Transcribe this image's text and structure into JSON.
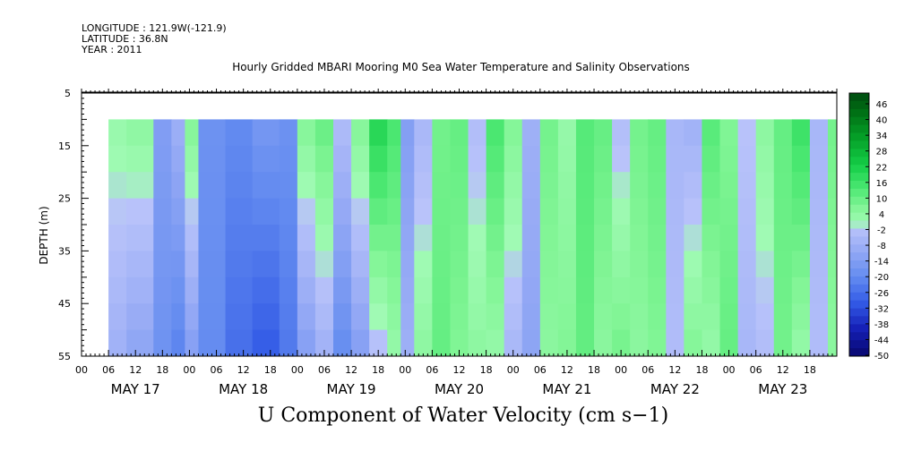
{
  "header": {
    "longitude": "LONGITUDE : 121.9W(-121.9)",
    "latitude": "LATITUDE : 36.8N",
    "year": "YEAR : 2011"
  },
  "chart_data": {
    "type": "heatmap",
    "title": "Hourly Gridded MBARI Mooring M0 Sea Water Temperature and Salinity Observations",
    "bottom_title": "U Component of Water Velocity (cm s−1)",
    "ylabel": "DEPTH (m)",
    "y_ticks": [
      "5",
      "15",
      "25",
      "35",
      "45",
      "55"
    ],
    "ylim": [
      5,
      55
    ],
    "depth_data_range": [
      10,
      55
    ],
    "x_hour_ticks": [
      "00",
      "06",
      "12",
      "18",
      "00",
      "06",
      "12",
      "18",
      "00",
      "06",
      "12",
      "18",
      "00",
      "06",
      "12",
      "18",
      "00",
      "06",
      "12",
      "18",
      "00",
      "06",
      "12",
      "18",
      "00",
      "06",
      "12",
      "18"
    ],
    "x_day_labels": [
      "MAY 17",
      "MAY 18",
      "MAY 19",
      "MAY 20",
      "MAY 21",
      "MAY 22",
      "MAY 23"
    ],
    "data_start_hour": 6,
    "total_hours": 168,
    "colorbar": {
      "labels": [
        "46",
        "40",
        "34",
        "28",
        "22",
        "16",
        "10",
        "4",
        "-2",
        "-8",
        "-14",
        "-20",
        "-26",
        "-32",
        "-38",
        "-44",
        "-50"
      ],
      "min": -50,
      "max": 49
    },
    "column_profiles": [
      {
        "hour": 6,
        "surface": 2,
        "deep": -8
      },
      {
        "hour": 10,
        "surface": 4,
        "deep": -12
      },
      {
        "hour": 16,
        "surface": -14,
        "deep": -18
      },
      {
        "hour": 20,
        "surface": -8,
        "deep": -22
      },
      {
        "hour": 23,
        "surface": 6,
        "deep": -14
      },
      {
        "hour": 26,
        "surface": -18,
        "deep": -20
      },
      {
        "hour": 32,
        "surface": -20,
        "deep": -26
      },
      {
        "hour": 38,
        "surface": -16,
        "deep": -30
      },
      {
        "hour": 44,
        "surface": -18,
        "deep": -24
      },
      {
        "hour": 48,
        "surface": 6,
        "deep": -14
      },
      {
        "hour": 52,
        "surface": 10,
        "deep": -8
      },
      {
        "hour": 56,
        "surface": -4,
        "deep": -20
      },
      {
        "hour": 60,
        "surface": 6,
        "deep": -14
      },
      {
        "hour": 64,
        "surface": 20,
        "deep": -4
      },
      {
        "hour": 68,
        "surface": 14,
        "deep": 2
      },
      {
        "hour": 71,
        "surface": -14,
        "deep": -8
      },
      {
        "hour": 74,
        "surface": -6,
        "deep": 4
      },
      {
        "hour": 78,
        "surface": 8,
        "deep": 10
      },
      {
        "hour": 82,
        "surface": 10,
        "deep": 6
      },
      {
        "hour": 86,
        "surface": -4,
        "deep": 4
      },
      {
        "hour": 90,
        "surface": 14,
        "deep": 2
      },
      {
        "hour": 94,
        "surface": 6,
        "deep": -6
      },
      {
        "hour": 98,
        "surface": -8,
        "deep": -12
      },
      {
        "hour": 102,
        "surface": 8,
        "deep": 4
      },
      {
        "hour": 106,
        "surface": 2,
        "deep": 6
      },
      {
        "hour": 110,
        "surface": 12,
        "deep": 10
      },
      {
        "hour": 114,
        "surface": 10,
        "deep": 4
      },
      {
        "hour": 118,
        "surface": -4,
        "deep": 8
      },
      {
        "hour": 122,
        "surface": 8,
        "deep": 4
      },
      {
        "hour": 126,
        "surface": 10,
        "deep": 6
      },
      {
        "hour": 130,
        "surface": -6,
        "deep": -4
      },
      {
        "hour": 134,
        "surface": -8,
        "deep": 6
      },
      {
        "hour": 138,
        "surface": 12,
        "deep": 2
      },
      {
        "hour": 142,
        "surface": 6,
        "deep": 10
      },
      {
        "hour": 146,
        "surface": -2,
        "deep": -6
      },
      {
        "hour": 150,
        "surface": 4,
        "deep": -4
      },
      {
        "hour": 154,
        "surface": 10,
        "deep": 8
      },
      {
        "hour": 158,
        "surface": 16,
        "deep": 2
      },
      {
        "hour": 162,
        "surface": -6,
        "deep": -4
      },
      {
        "hour": 166,
        "surface": 8,
        "deep": 4
      },
      {
        "hour": 168,
        "surface": 10,
        "deep": 6
      }
    ]
  }
}
